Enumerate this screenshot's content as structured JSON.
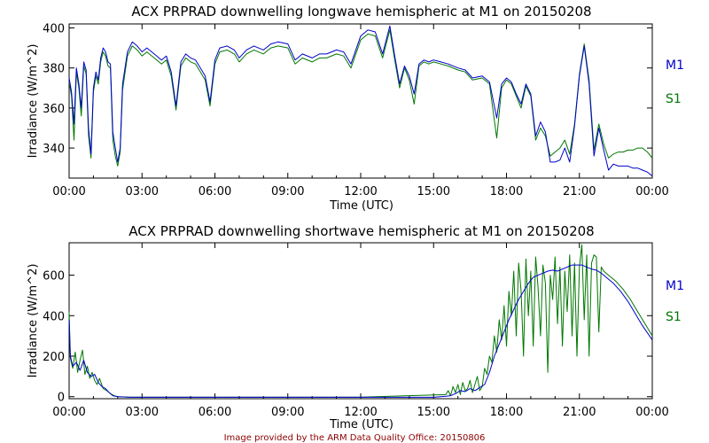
{
  "credit": "Image provided by the ARM Data Quality Office: 20150806",
  "colors": {
    "M1": "#0000cc",
    "S1": "#007700"
  },
  "chart_data": [
    {
      "type": "line",
      "title": "ACX PRPRAD downwelling longwave hemispheric at M1 on 20150208",
      "xlabel": "Time (UTC)",
      "ylabel": "Irradiance (W/m^2)",
      "xlim": [
        0,
        24
      ],
      "ylim": [
        325,
        402
      ],
      "xticks": [
        0,
        3,
        6,
        9,
        12,
        15,
        18,
        21,
        24
      ],
      "xtick_labels": [
        "00:00",
        "03:00",
        "06:00",
        "09:00",
        "12:00",
        "15:00",
        "18:00",
        "21:00",
        "00:00"
      ],
      "yticks": [
        340,
        360,
        380,
        400
      ],
      "ytick_labels": [
        "340",
        "360",
        "380",
        "400"
      ],
      "grid": false,
      "legend": "right",
      "series": [
        {
          "name": "M1",
          "x": [
            0,
            0.1,
            0.2,
            0.3,
            0.4,
            0.5,
            0.6,
            0.7,
            0.8,
            0.9,
            1.0,
            1.1,
            1.2,
            1.3,
            1.4,
            1.5,
            1.6,
            1.7,
            1.8,
            1.9,
            2.0,
            2.1,
            2.2,
            2.4,
            2.6,
            2.8,
            3.0,
            3.2,
            3.5,
            3.8,
            4.0,
            4.2,
            4.4,
            4.6,
            4.8,
            5.0,
            5.2,
            5.4,
            5.6,
            5.8,
            6.0,
            6.2,
            6.5,
            6.8,
            7.0,
            7.3,
            7.6,
            8.0,
            8.3,
            8.6,
            9.0,
            9.3,
            9.6,
            10.0,
            10.3,
            10.6,
            11.0,
            11.3,
            11.6,
            12.0,
            12.3,
            12.6,
            12.9,
            13.2,
            13.4,
            13.6,
            13.8,
            14.0,
            14.2,
            14.4,
            14.6,
            14.8,
            15.0,
            15.3,
            15.6,
            16.0,
            16.3,
            16.6,
            17.0,
            17.3,
            17.6,
            17.8,
            18.0,
            18.2,
            18.4,
            18.6,
            18.8,
            19.0,
            19.2,
            19.4,
            19.6,
            19.8,
            20.0,
            20.2,
            20.4,
            20.6,
            20.8,
            21.0,
            21.2,
            21.4,
            21.6,
            21.8,
            22.0,
            22.2,
            22.4,
            22.6,
            22.8,
            23.0,
            23.2,
            23.4,
            23.6,
            23.8,
            24.0
          ],
          "values": [
            375,
            368,
            352,
            380,
            372,
            360,
            383,
            379,
            350,
            337,
            370,
            378,
            374,
            385,
            390,
            388,
            383,
            382,
            348,
            340,
            333,
            340,
            372,
            388,
            393,
            391,
            388,
            390,
            387,
            384,
            386,
            378,
            361,
            383,
            387,
            385,
            384,
            380,
            376,
            363,
            384,
            390,
            391,
            389,
            385,
            389,
            391,
            389,
            392,
            393,
            392,
            384,
            387,
            385,
            387,
            387,
            389,
            388,
            382,
            396,
            399,
            398,
            387,
            401,
            386,
            372,
            381,
            376,
            367,
            382,
            384,
            383,
            384,
            383,
            382,
            380,
            379,
            375,
            376,
            373,
            355,
            372,
            375,
            373,
            367,
            362,
            372,
            367,
            346,
            353,
            348,
            333,
            333,
            334,
            340,
            333,
            351,
            376,
            391,
            372,
            336,
            350,
            339,
            329,
            332,
            331,
            331,
            331,
            330,
            330,
            329,
            328,
            326
          ]
        },
        {
          "name": "S1",
          "x": [
            0,
            0.1,
            0.2,
            0.3,
            0.4,
            0.5,
            0.6,
            0.7,
            0.8,
            0.9,
            1.0,
            1.1,
            1.2,
            1.3,
            1.4,
            1.5,
            1.6,
            1.7,
            1.8,
            1.9,
            2.0,
            2.1,
            2.2,
            2.4,
            2.6,
            2.8,
            3.0,
            3.2,
            3.5,
            3.8,
            4.0,
            4.2,
            4.4,
            4.6,
            4.8,
            5.0,
            5.2,
            5.4,
            5.6,
            5.8,
            6.0,
            6.2,
            6.5,
            6.8,
            7.0,
            7.3,
            7.6,
            8.0,
            8.3,
            8.6,
            9.0,
            9.3,
            9.6,
            10.0,
            10.3,
            10.6,
            11.0,
            11.3,
            11.6,
            12.0,
            12.3,
            12.6,
            12.9,
            13.2,
            13.4,
            13.6,
            13.8,
            14.0,
            14.2,
            14.4,
            14.6,
            14.8,
            15.0,
            15.3,
            15.6,
            16.0,
            16.3,
            16.6,
            17.0,
            17.3,
            17.6,
            17.8,
            18.0,
            18.2,
            18.4,
            18.6,
            18.8,
            19.0,
            19.2,
            19.4,
            19.6,
            19.8,
            20.0,
            20.2,
            20.4,
            20.6,
            20.8,
            21.0,
            21.2,
            21.4,
            21.6,
            21.8,
            22.0,
            22.2,
            22.4,
            22.6,
            22.8,
            23.0,
            23.2,
            23.4,
            23.6,
            23.8,
            24.0
          ],
          "values": [
            373,
            366,
            344,
            378,
            370,
            356,
            381,
            377,
            346,
            335,
            368,
            376,
            372,
            383,
            388,
            386,
            381,
            380,
            344,
            336,
            331,
            338,
            369,
            386,
            391,
            389,
            386,
            388,
            385,
            382,
            384,
            376,
            359,
            381,
            385,
            383,
            382,
            378,
            374,
            361,
            382,
            388,
            389,
            387,
            383,
            387,
            389,
            387,
            390,
            391,
            390,
            382,
            385,
            383,
            385,
            385,
            387,
            386,
            380,
            394,
            397,
            396,
            385,
            399,
            384,
            370,
            380,
            374,
            362,
            381,
            383,
            382,
            383,
            382,
            381,
            379,
            378,
            374,
            375,
            372,
            345,
            370,
            374,
            372,
            366,
            360,
            371,
            366,
            344,
            350,
            346,
            336,
            338,
            340,
            344,
            337,
            352,
            377,
            392,
            374,
            339,
            352,
            342,
            335,
            337,
            338,
            338,
            339,
            339,
            340,
            340,
            338,
            335
          ]
        }
      ]
    },
    {
      "type": "line",
      "title": "ACX PRPRAD downwelling shortwave hemispheric at M1 on 20150208",
      "xlabel": "Time (UTC)",
      "ylabel": "Irradiance (W/m^2)",
      "xlim": [
        0,
        24
      ],
      "ylim": [
        -10,
        760
      ],
      "xticks": [
        0,
        3,
        6,
        9,
        12,
        15,
        18,
        21,
        24
      ],
      "xtick_labels": [
        "00:00",
        "03:00",
        "06:00",
        "09:00",
        "12:00",
        "15:00",
        "18:00",
        "21:00",
        "00:00"
      ],
      "yticks": [
        0,
        200,
        400,
        600
      ],
      "ytick_labels": [
        "0",
        "200",
        "400",
        "600"
      ],
      "grid": false,
      "legend": "right",
      "series": [
        {
          "name": "M1",
          "x": [
            0,
            0.05,
            0.15,
            0.3,
            0.45,
            0.6,
            0.75,
            0.9,
            1.05,
            1.2,
            1.35,
            1.5,
            1.65,
            1.8,
            2.0,
            2.5,
            3.0,
            6.0,
            9.0,
            12.0,
            15.0,
            15.5,
            15.7,
            15.9,
            16.1,
            16.3,
            16.5,
            16.7,
            16.9,
            17.1,
            17.3,
            17.5,
            17.7,
            17.9,
            18.1,
            18.3,
            18.5,
            18.7,
            18.9,
            19.1,
            19.3,
            19.5,
            19.7,
            19.9,
            20.1,
            20.3,
            20.5,
            20.7,
            20.9,
            21.1,
            21.3,
            21.5,
            21.7,
            21.9,
            22.1,
            22.4,
            22.7,
            23.0,
            23.3,
            23.6,
            24.0
          ],
          "values": [
            380,
            200,
            150,
            170,
            130,
            180,
            120,
            100,
            110,
            70,
            50,
            40,
            20,
            5,
            0,
            -3,
            -3,
            -3,
            -3,
            -3,
            -3,
            2,
            5,
            15,
            30,
            25,
            40,
            30,
            45,
            60,
            120,
            200,
            260,
            320,
            380,
            430,
            480,
            520,
            560,
            590,
            600,
            610,
            620,
            625,
            620,
            630,
            640,
            650,
            650,
            650,
            640,
            630,
            625,
            610,
            590,
            560,
            520,
            470,
            410,
            350,
            280
          ]
        },
        {
          "name": "S1",
          "x": [
            0,
            0.05,
            0.15,
            0.25,
            0.35,
            0.45,
            0.55,
            0.65,
            0.75,
            0.85,
            0.95,
            1.05,
            1.15,
            1.25,
            1.4,
            1.55,
            1.7,
            1.85,
            2.0,
            2.5,
            3.0,
            6.0,
            9.0,
            12.0,
            15.5,
            15.6,
            15.7,
            15.8,
            15.9,
            16.0,
            16.1,
            16.2,
            16.3,
            16.4,
            16.5,
            16.6,
            16.7,
            16.8,
            16.9,
            17.0,
            17.1,
            17.2,
            17.3,
            17.4,
            17.5,
            17.6,
            17.7,
            17.8,
            17.9,
            18.0,
            18.1,
            18.2,
            18.3,
            18.4,
            18.5,
            18.6,
            18.7,
            18.8,
            18.9,
            19.0,
            19.1,
            19.2,
            19.3,
            19.4,
            19.5,
            19.6,
            19.7,
            19.8,
            19.9,
            20.0,
            20.1,
            20.2,
            20.3,
            20.4,
            20.5,
            20.6,
            20.7,
            20.8,
            20.9,
            21.0,
            21.1,
            21.2,
            21.3,
            21.4,
            21.5,
            21.6,
            21.7,
            21.8,
            21.9,
            22.0,
            22.2,
            22.5,
            22.8,
            23.1,
            23.4,
            23.7,
            24.0
          ],
          "values": [
            420,
            190,
            140,
            220,
            120,
            180,
            230,
            110,
            150,
            90,
            120,
            80,
            60,
            90,
            40,
            30,
            15,
            5,
            0,
            -2,
            -2,
            -2,
            -2,
            -2,
            10,
            30,
            5,
            50,
            20,
            60,
            10,
            70,
            30,
            40,
            80,
            20,
            60,
            100,
            30,
            50,
            140,
            110,
            200,
            170,
            300,
            220,
            380,
            280,
            450,
            250,
            520,
            400,
            620,
            300,
            660,
            520,
            200,
            680,
            400,
            620,
            250,
            690,
            540,
            300,
            650,
            560,
            120,
            600,
            480,
            690,
            360,
            640,
            250,
            620,
            420,
            700,
            300,
            660,
            200,
            640,
            750,
            380,
            700,
            200,
            660,
            700,
            690,
            320,
            640,
            620,
            600,
            570,
            530,
            480,
            420,
            360,
            300
          ]
        }
      ]
    }
  ]
}
